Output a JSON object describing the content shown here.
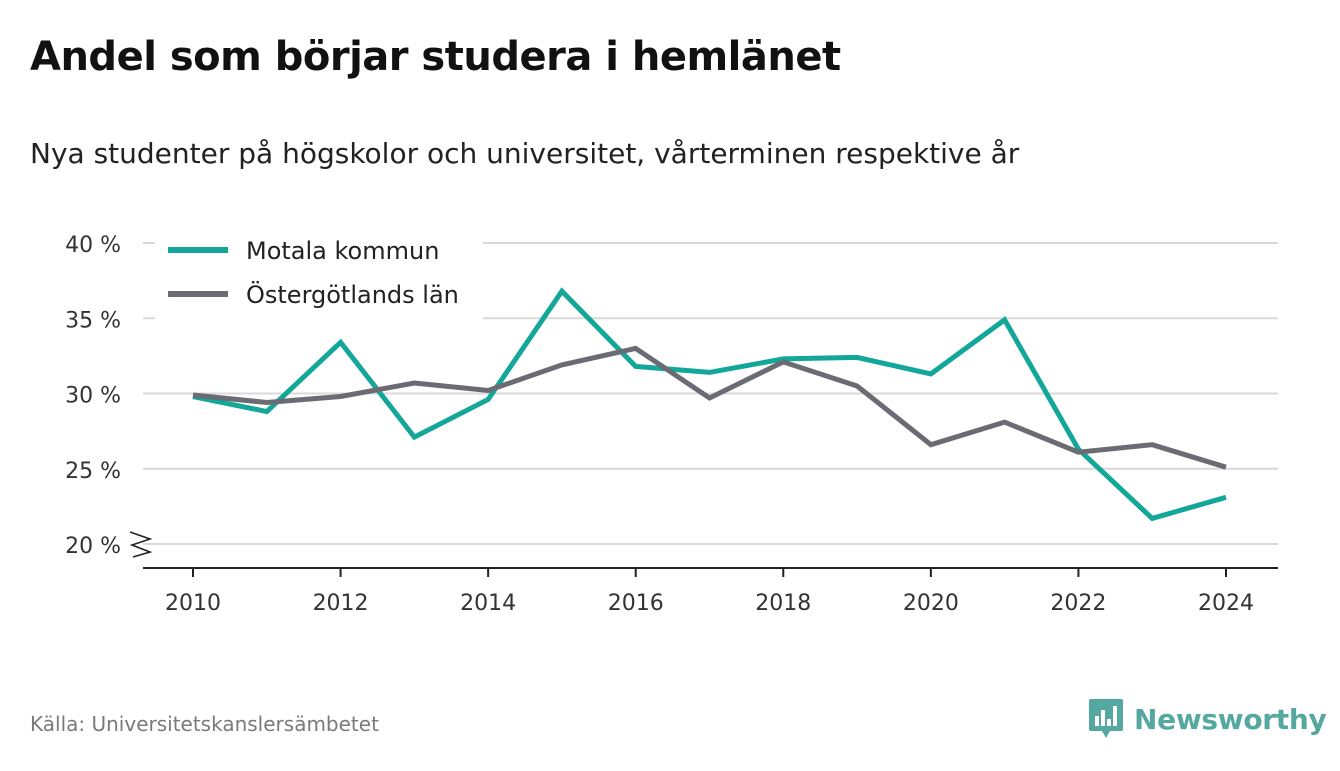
{
  "header": {
    "title": "Andel som börjar studera i hemlänet",
    "subtitle": "Nya studenter på högskolor och universitet, vårterminen respektive år"
  },
  "footer": {
    "source": "Källa: Universitetskanslersämbetet",
    "brand": "Newsworthy",
    "brand_color": "#55a89f",
    "brand_icon": "bar-chart-speech-bubble-icon"
  },
  "chart_data": {
    "type": "line",
    "title": "Andel som börjar studera i hemlänet",
    "subtitle": "Nya studenter på högskolor och universitet, vårterminen respektive år",
    "x": [
      2010,
      2011,
      2012,
      2013,
      2014,
      2015,
      2016,
      2017,
      2018,
      2019,
      2020,
      2021,
      2022,
      2023,
      2024
    ],
    "x_ticks": [
      "2010",
      "2012",
      "2014",
      "2016",
      "2018",
      "2020",
      "2022",
      "2024"
    ],
    "y_ticks": [
      "20 %",
      "25 %",
      "30 %",
      "35 %",
      "40 %"
    ],
    "ylim": [
      20,
      40
    ],
    "y_axis_break": true,
    "grid": "horizontal",
    "legend_position": "top-left",
    "series": [
      {
        "name": "Motala kommun",
        "color": "#13a79a",
        "values": [
          29.8,
          28.8,
          33.4,
          27.1,
          29.6,
          36.8,
          31.8,
          31.4,
          32.3,
          32.4,
          31.3,
          34.9,
          26.3,
          21.7,
          23.1
        ]
      },
      {
        "name": "Östergötlands län",
        "color": "#6b6b73",
        "values": [
          29.9,
          29.4,
          29.8,
          30.7,
          30.2,
          31.9,
          33.0,
          29.7,
          32.1,
          30.5,
          26.6,
          28.1,
          26.1,
          26.6,
          25.1
        ]
      }
    ]
  }
}
